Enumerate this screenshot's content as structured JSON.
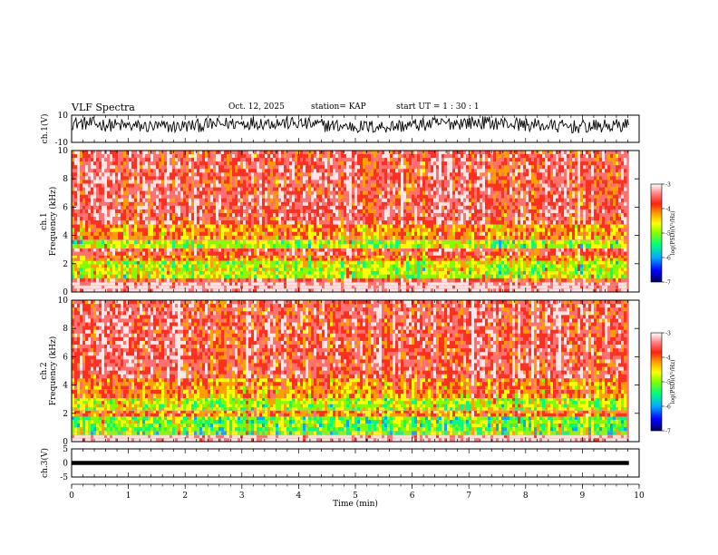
{
  "header": {
    "title": "VLF Spectra",
    "date": "Oct. 12, 2025",
    "station": "station= KAP",
    "start_ut": "start  UT =   1 : 30 : 1"
  },
  "colors": {
    "colormap": [
      "#000080",
      "#0000ff",
      "#00aaff",
      "#00ff80",
      "#80ff00",
      "#ffff00",
      "#ffa000",
      "#ff3020",
      "#ff7070",
      "#ffe6e6"
    ],
    "trace": "#000000"
  },
  "chart_data": [
    {
      "id": "ch1-waveform",
      "type": "line",
      "ylabel": "ch.1(V)",
      "ylim": [
        -10,
        10
      ],
      "y_tick_labels": [
        "10",
        "-10"
      ],
      "x_range": [
        0,
        10
      ],
      "x_end_data": 9.82,
      "description_values": {
        "mean": 3,
        "amplitude": 5
      }
    },
    {
      "id": "ch1-spectrogram",
      "type": "heatmap",
      "ylabel": "ch.1 Frequency (kHz)",
      "ylabel_lines": [
        "ch.1",
        "Frequency  (kHz)"
      ],
      "ylim": [
        0,
        10
      ],
      "y_ticks": [
        "0",
        "2",
        "4",
        "6",
        "8",
        "10"
      ],
      "colorbar": {
        "label": "log(PSD)(V²/Hz)",
        "range": [
          -7,
          -3
        ],
        "ticks": [
          "-3",
          "-4",
          "-5",
          "-6",
          "-7"
        ]
      },
      "bands_khz": [
        {
          "from": 0.0,
          "to": 0.7,
          "level": -3.2
        },
        {
          "from": 0.7,
          "to": 1.0,
          "level": -3.9
        },
        {
          "from": 1.0,
          "to": 2.2,
          "level": -5.0
        },
        {
          "from": 2.2,
          "to": 2.6,
          "level": -4.3
        },
        {
          "from": 2.6,
          "to": 3.1,
          "level": -3.9
        },
        {
          "from": 3.1,
          "to": 3.7,
          "level": -5.1
        },
        {
          "from": 3.7,
          "to": 4.8,
          "level": -4.4
        },
        {
          "from": 4.8,
          "to": 10.0,
          "level": -3.8
        }
      ]
    },
    {
      "id": "ch2-spectrogram",
      "type": "heatmap",
      "ylabel": "ch.2 Frequency (kHz)",
      "ylabel_lines": [
        "ch.2",
        "Frequency  (kHz)"
      ],
      "ylim": [
        0,
        10
      ],
      "y_ticks": [
        "0",
        "2",
        "4",
        "6",
        "8",
        "10"
      ],
      "colorbar": {
        "label": "log(PSD)(V²/Hz)",
        "range": [
          -7,
          -3
        ],
        "ticks": [
          "-3",
          "-4",
          "-5",
          "-6",
          "-7"
        ]
      },
      "bands_khz": [
        {
          "from": 0.0,
          "to": 0.5,
          "level": -3.2
        },
        {
          "from": 0.5,
          "to": 1.8,
          "level": -5.3
        },
        {
          "from": 1.8,
          "to": 2.2,
          "level": -4.3
        },
        {
          "from": 2.2,
          "to": 3.1,
          "level": -5.0
        },
        {
          "from": 3.1,
          "to": 4.5,
          "level": -4.3
        },
        {
          "from": 4.5,
          "to": 10.0,
          "level": -3.8
        }
      ]
    },
    {
      "id": "ch3-waveform",
      "type": "line",
      "ylabel": "ch.3(V)",
      "ylim": [
        -5,
        5
      ],
      "y_ticks": [
        "5",
        "0",
        "-5"
      ],
      "x_range": [
        0,
        10
      ],
      "x_end_data": 9.82,
      "description_values": {
        "mean": 0,
        "amplitude": 0.4
      },
      "xlabel": "Time  (min)",
      "x_ticks": [
        "0",
        "1",
        "2",
        "3",
        "4",
        "5",
        "6",
        "7",
        "8",
        "9",
        "10"
      ]
    }
  ]
}
